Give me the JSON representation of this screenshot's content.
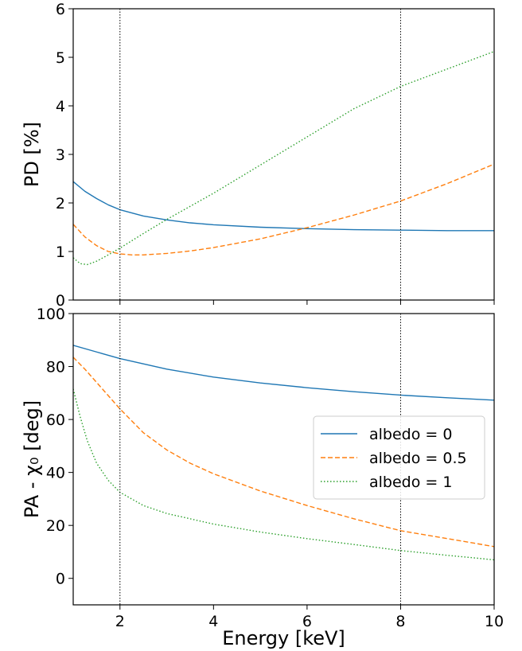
{
  "chart_data": [
    {
      "type": "line",
      "ylabel": "PD [%]",
      "xlim": [
        1,
        10
      ],
      "ylim": [
        0,
        6
      ],
      "yticks": [
        0,
        1,
        2,
        3,
        4,
        5,
        6
      ],
      "yticklabels": [
        "0",
        "1",
        "2",
        "3",
        "4",
        "5",
        "6"
      ],
      "grid": false,
      "vlines": [
        2,
        8
      ],
      "series": [
        {
          "name": "albedo = 0",
          "color": "#1f77b4",
          "dash": "solid",
          "x": [
            1.0,
            1.25,
            1.5,
            1.75,
            2.0,
            2.5,
            3.0,
            3.5,
            4.0,
            5.0,
            6.0,
            7.0,
            8.0,
            9.0,
            10.0
          ],
          "y": [
            2.44,
            2.24,
            2.09,
            1.96,
            1.86,
            1.73,
            1.65,
            1.59,
            1.55,
            1.5,
            1.47,
            1.45,
            1.44,
            1.43,
            1.43
          ]
        },
        {
          "name": "albedo = 0.5",
          "color": "#ff7f0e",
          "dash": "dashed",
          "x": [
            1.0,
            1.25,
            1.5,
            1.75,
            2.0,
            2.25,
            2.5,
            3.0,
            3.5,
            4.0,
            5.0,
            6.0,
            7.0,
            8.0,
            9.0,
            10.0
          ],
          "y": [
            1.56,
            1.3,
            1.12,
            1.0,
            0.95,
            0.93,
            0.93,
            0.96,
            1.01,
            1.08,
            1.26,
            1.49,
            1.75,
            2.04,
            2.4,
            2.8
          ]
        },
        {
          "name": "albedo = 1",
          "color": "#2ca02c",
          "dash": "dotted",
          "x": [
            1.0,
            1.15,
            1.3,
            1.5,
            1.75,
            2.0,
            2.5,
            3.0,
            4.0,
            5.0,
            6.0,
            7.0,
            8.0,
            9.0,
            10.0
          ],
          "y": [
            0.87,
            0.75,
            0.73,
            0.8,
            0.93,
            1.07,
            1.37,
            1.66,
            2.2,
            2.78,
            3.36,
            3.94,
            4.4,
            4.76,
            5.12
          ]
        }
      ]
    },
    {
      "type": "line",
      "xlabel": "Energy [keV]",
      "ylabel": "PA - χ₀ [deg]",
      "xlim": [
        1,
        10
      ],
      "ylim": [
        -10,
        100
      ],
      "xticks": [
        2,
        4,
        6,
        8,
        10
      ],
      "xticklabels": [
        "2",
        "4",
        "6",
        "8",
        "10"
      ],
      "yticks": [
        0,
        20,
        40,
        60,
        80,
        100
      ],
      "yticklabels": [
        "0",
        "20",
        "40",
        "60",
        "80",
        "100"
      ],
      "grid": false,
      "vlines": [
        2,
        8
      ],
      "legend_position": "center-right",
      "series": [
        {
          "name": "albedo = 0",
          "color": "#1f77b4",
          "dash": "solid",
          "x": [
            1.0,
            1.5,
            2.0,
            3.0,
            4.0,
            5.0,
            6.0,
            7.0,
            8.0,
            9.0,
            10.0
          ],
          "y": [
            88.0,
            85.5,
            83.0,
            79.0,
            76.0,
            73.8,
            72.0,
            70.5,
            69.2,
            68.2,
            67.3
          ]
        },
        {
          "name": "albedo = 0.5",
          "color": "#ff7f0e",
          "dash": "dashed",
          "x": [
            1.0,
            1.25,
            1.5,
            1.75,
            2.0,
            2.5,
            3.0,
            3.5,
            4.0,
            5.0,
            6.0,
            7.0,
            8.0,
            9.0,
            10.0
          ],
          "y": [
            83.5,
            79.0,
            74.0,
            69.0,
            64.0,
            55.0,
            48.5,
            43.5,
            39.5,
            33.0,
            27.5,
            22.5,
            18.0,
            15.0,
            12.0
          ]
        },
        {
          "name": "albedo = 1",
          "color": "#2ca02c",
          "dash": "dotted",
          "x": [
            1.0,
            1.15,
            1.3,
            1.5,
            1.75,
            2.0,
            2.5,
            3.0,
            4.0,
            5.0,
            6.0,
            7.0,
            8.0,
            9.0,
            10.0
          ],
          "y": [
            71.5,
            61.0,
            52.0,
            43.5,
            37.0,
            32.5,
            27.5,
            24.5,
            20.5,
            17.5,
            15.0,
            12.8,
            10.5,
            8.7,
            7.0
          ]
        }
      ]
    }
  ]
}
